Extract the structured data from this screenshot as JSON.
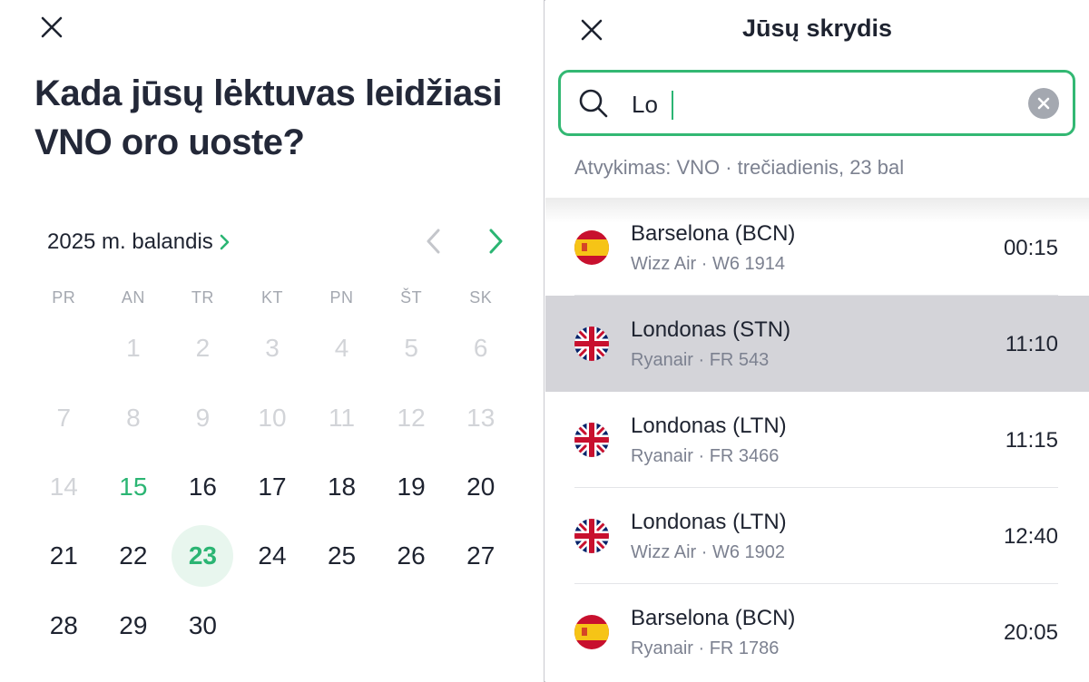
{
  "left_panel": {
    "heading": "Kada jūsų lėktuvas leidžiasi VNO oro uoste?",
    "calendar": {
      "month_label": "2025 m. balandis",
      "weekdays": [
        "PR",
        "AN",
        "TR",
        "KT",
        "PN",
        "ŠT",
        "SK"
      ],
      "days": [
        {
          "n": "",
          "state": "blank"
        },
        {
          "n": "1",
          "state": "disabled"
        },
        {
          "n": "2",
          "state": "disabled"
        },
        {
          "n": "3",
          "state": "disabled"
        },
        {
          "n": "4",
          "state": "disabled"
        },
        {
          "n": "5",
          "state": "disabled"
        },
        {
          "n": "6",
          "state": "disabled"
        },
        {
          "n": "7",
          "state": "disabled"
        },
        {
          "n": "8",
          "state": "disabled"
        },
        {
          "n": "9",
          "state": "disabled"
        },
        {
          "n": "10",
          "state": "disabled"
        },
        {
          "n": "11",
          "state": "disabled"
        },
        {
          "n": "12",
          "state": "disabled"
        },
        {
          "n": "13",
          "state": "disabled"
        },
        {
          "n": "14",
          "state": "disabled"
        },
        {
          "n": "15",
          "state": "today"
        },
        {
          "n": "16",
          "state": "normal"
        },
        {
          "n": "17",
          "state": "normal"
        },
        {
          "n": "18",
          "state": "normal"
        },
        {
          "n": "19",
          "state": "normal"
        },
        {
          "n": "20",
          "state": "normal"
        },
        {
          "n": "21",
          "state": "normal"
        },
        {
          "n": "22",
          "state": "normal"
        },
        {
          "n": "23",
          "state": "selected"
        },
        {
          "n": "24",
          "state": "normal"
        },
        {
          "n": "25",
          "state": "normal"
        },
        {
          "n": "26",
          "state": "normal"
        },
        {
          "n": "27",
          "state": "normal"
        },
        {
          "n": "28",
          "state": "normal"
        },
        {
          "n": "29",
          "state": "normal"
        },
        {
          "n": "30",
          "state": "normal"
        }
      ]
    }
  },
  "right_panel": {
    "title": "Jūsų skrydis",
    "search": {
      "value": "Lo",
      "placeholder": ""
    },
    "arrival_info": "Atvykimas: VNO · trečiadienis, 23 bal",
    "flights": [
      {
        "city": "Barselona (BCN)",
        "airline": "Wizz Air · W6 1914",
        "time": "00:15",
        "flag": "spain-flag-icon",
        "highlighted": false
      },
      {
        "city": "Londonas (STN)",
        "airline": "Ryanair · FR 543",
        "time": "11:10",
        "flag": "uk-flag-icon",
        "highlighted": true
      },
      {
        "city": "Londonas (LTN)",
        "airline": "Ryanair · FR 3466",
        "time": "11:15",
        "flag": "uk-flag-icon",
        "highlighted": false
      },
      {
        "city": "Londonas (LTN)",
        "airline": "Wizz Air · W6 1902",
        "time": "12:40",
        "flag": "uk-flag-icon",
        "highlighted": false
      },
      {
        "city": "Barselona (BCN)",
        "airline": "Ryanair · FR 1786",
        "time": "20:05",
        "flag": "spain-flag-icon",
        "highlighted": false
      }
    ]
  },
  "colors": {
    "accent": "#2bb573",
    "selected_day_bg": "#e8f6ee",
    "highlight_row": "#d4d4d9",
    "muted_text": "#7c8190",
    "disabled_text": "#d2d4d8"
  }
}
